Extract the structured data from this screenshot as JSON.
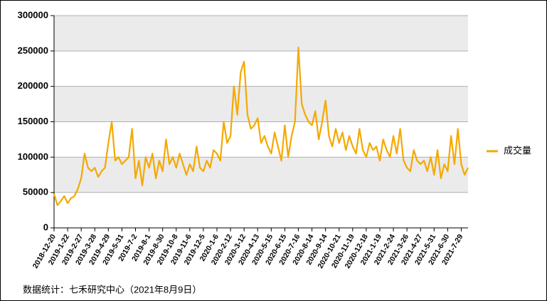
{
  "chart_data": {
    "type": "line",
    "categories": [
      "2018-12-20",
      null,
      null,
      null,
      "2019-1-22",
      null,
      null,
      null,
      "2019-2-27",
      null,
      null,
      null,
      "2019-3-28",
      null,
      null,
      null,
      "2019-4-29",
      null,
      null,
      null,
      "2019-5-31",
      null,
      null,
      null,
      "2019-7-2",
      null,
      null,
      null,
      "2019-8-1",
      null,
      null,
      null,
      "2019-8-30",
      null,
      null,
      null,
      "2019-10-8",
      null,
      null,
      null,
      "2019-11-6",
      null,
      null,
      null,
      "2019-12-5",
      null,
      null,
      null,
      "2020-1-6",
      null,
      null,
      null,
      "2020-2-12",
      null,
      null,
      null,
      "2020-3-12",
      null,
      null,
      null,
      "2020-4-13",
      null,
      null,
      null,
      "2020-5-15",
      null,
      null,
      null,
      "2020-6-15",
      null,
      null,
      null,
      "2020-7-16",
      null,
      null,
      null,
      "2020-8-14",
      null,
      null,
      null,
      "2020-9-14",
      null,
      null,
      null,
      "2020-10-21",
      null,
      null,
      null,
      "2020-11-19",
      null,
      null,
      null,
      "2020-12-18",
      null,
      null,
      null,
      "2021-1-19",
      null,
      null,
      null,
      "2021-2-24",
      null,
      null,
      null,
      "2021-3-26",
      null,
      null,
      null,
      "2021-4-27",
      null,
      null,
      null,
      "2021-5-31",
      null,
      null,
      null,
      "2021-6-30",
      null,
      null,
      null,
      "2021-7-29",
      null,
      null
    ],
    "series": [
      {
        "name": "成交量",
        "color": "#f5a800",
        "values": [
          48000,
          32000,
          38000,
          45000,
          35000,
          42000,
          45000,
          55000,
          70000,
          105000,
          85000,
          80000,
          85000,
          72000,
          80000,
          85000,
          120000,
          150000,
          95000,
          100000,
          90000,
          95000,
          100000,
          140000,
          70000,
          95000,
          60000,
          100000,
          85000,
          105000,
          70000,
          95000,
          80000,
          125000,
          90000,
          100000,
          85000,
          105000,
          90000,
          75000,
          90000,
          80000,
          115000,
          85000,
          80000,
          95000,
          85000,
          110000,
          105000,
          95000,
          150000,
          120000,
          130000,
          200000,
          160000,
          220000,
          235000,
          160000,
          140000,
          145000,
          155000,
          120000,
          130000,
          115000,
          105000,
          135000,
          115000,
          95000,
          145000,
          100000,
          130000,
          150000,
          255000,
          175000,
          160000,
          150000,
          145000,
          165000,
          125000,
          150000,
          180000,
          130000,
          115000,
          140000,
          120000,
          135000,
          110000,
          130000,
          115000,
          105000,
          140000,
          110000,
          100000,
          120000,
          110000,
          115000,
          95000,
          125000,
          110000,
          100000,
          130000,
          105000,
          140000,
          95000,
          85000,
          80000,
          110000,
          95000,
          90000,
          95000,
          80000,
          100000,
          75000,
          110000,
          70000,
          90000,
          80000,
          130000,
          90000,
          140000,
          90000,
          75000,
          85000
        ]
      }
    ],
    "ylim": [
      0,
      300000
    ],
    "yticks": [
      0,
      50000,
      100000,
      150000,
      200000,
      250000,
      300000
    ],
    "grid": true,
    "legend": "right",
    "source": "数据统计：七禾研究中心（2021年8月9日）"
  }
}
